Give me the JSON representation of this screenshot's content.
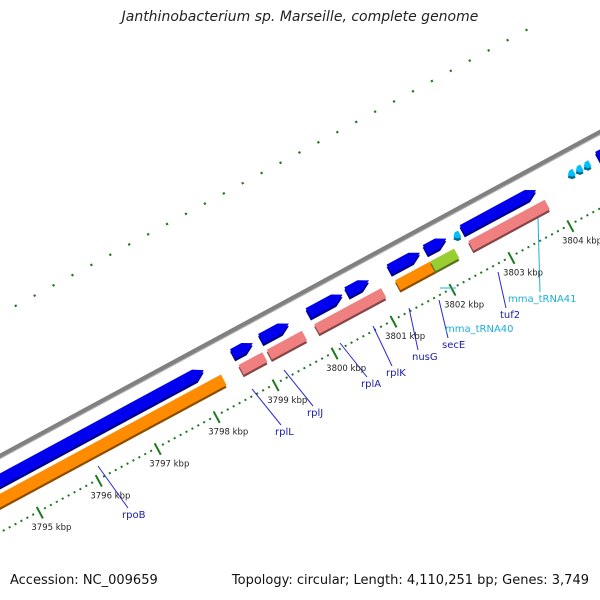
{
  "header": {
    "title": "Janthinobacterium sp. Marseille, complete genome"
  },
  "footer": {
    "accession": "Accession: NC_009659",
    "stats": "Topology: circular; Length: 4,110,251 bp; Genes: 3,749"
  },
  "colors": {
    "backbone": "#808080",
    "cds": "#0000ee",
    "rna_gene": "#ff8c00",
    "rrna_cog": "#f08080",
    "trna": "#00bfff",
    "other": "#c0c0c0",
    "highlight": "#9acd32",
    "tick": "#1e7a1e",
    "label_cds": "#1a1aa8",
    "label_trna": "#1ab0d8"
  },
  "ruler": {
    "unit": "kbp",
    "labels": [
      "3795 kbp",
      "3796 kbp",
      "3797 kbp",
      "3798 kbp",
      "3799 kbp",
      "3800 kbp",
      "3801 kbp",
      "3802 kbp",
      "3803 kbp",
      "3804 kbp"
    ]
  },
  "genes": [
    {
      "name": "rpoB",
      "type": "cds"
    },
    {
      "name": "rplL",
      "type": "cds"
    },
    {
      "name": "rplJ",
      "type": "cds"
    },
    {
      "name": "rplA",
      "type": "cds"
    },
    {
      "name": "rplK",
      "type": "cds"
    },
    {
      "name": "nusG",
      "type": "cds"
    },
    {
      "name": "secE",
      "type": "cds"
    },
    {
      "name": "mma_tRNA40",
      "type": "trna"
    },
    {
      "name": "tuf2",
      "type": "cds"
    },
    {
      "name": "mma_tRNA41",
      "type": "trna"
    }
  ]
}
